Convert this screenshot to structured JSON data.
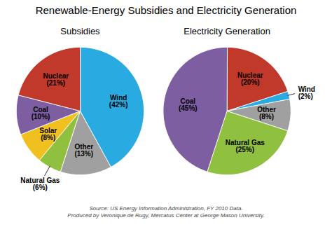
{
  "title": "Renewable-Energy Subsidies and Electricity Generation",
  "source": "Source:  US Energy Information Administration, FY 2010 Data.\nProduced by Veronique de Rugy, Mercatus Center at George Mason University.",
  "chart_data": [
    {
      "type": "pie",
      "title": "Subsidies",
      "categories": [
        "Wind",
        "Other",
        "Natural Gas",
        "Solar",
        "Coal",
        "Nuclear"
      ],
      "values": [
        42,
        13,
        6,
        8,
        10,
        21
      ],
      "value_labels": [
        "(42%)",
        "(13%)",
        "(6%)",
        "(8%)",
        "(10%)",
        "(21%)"
      ],
      "colors": [
        "#29ABE2",
        "#A0A0A0",
        "#90C040",
        "#F0C020",
        "#7D5EA0",
        "#C0392B"
      ],
      "data_labels": true
    },
    {
      "type": "pie",
      "title": "Electricity Generation",
      "categories": [
        "Nuclear",
        "Wind",
        "Other",
        "Natural Gas",
        "Coal"
      ],
      "values": [
        20,
        2,
        8,
        25,
        45
      ],
      "value_labels": [
        "(20%)",
        "(2%)",
        "(8%)",
        "(25%)",
        "(45%)"
      ],
      "colors": [
        "#C0392B",
        "#29ABE2",
        "#A0A0A0",
        "#90C040",
        "#7D5EA0"
      ],
      "data_labels": true
    }
  ]
}
